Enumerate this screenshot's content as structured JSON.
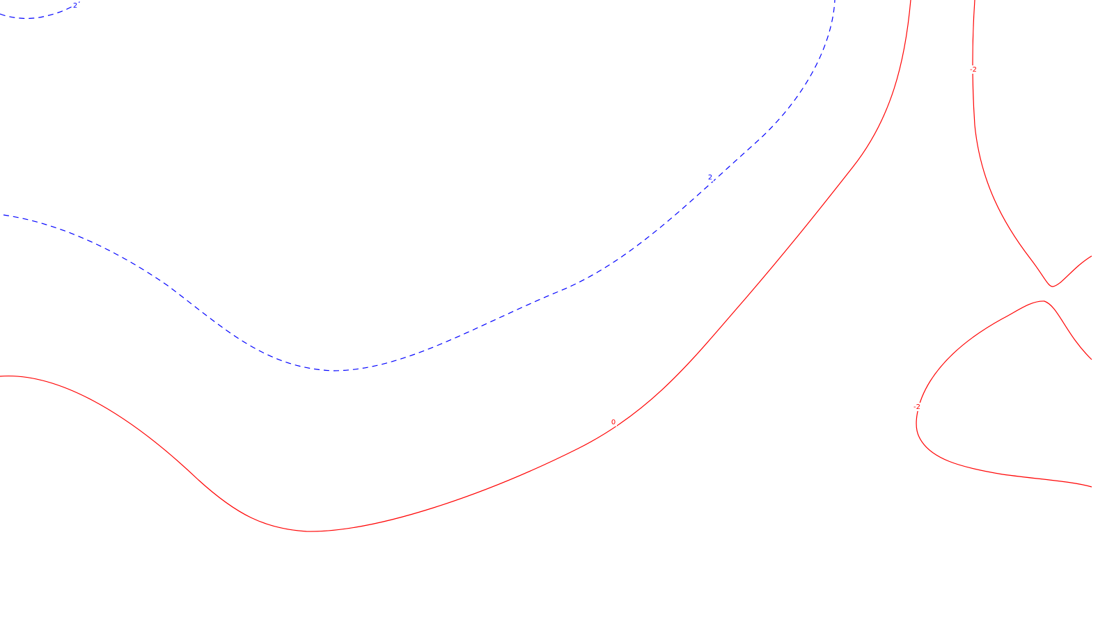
{
  "chart_data": {
    "type": "contour",
    "title": "",
    "xlabel": "",
    "ylabel": "",
    "grid": false,
    "legend": "none",
    "colors": {
      "background": "#ffffff",
      "positive": "#0000ff",
      "nonpositive": "#ff0000"
    },
    "levels": [
      {
        "value": 2,
        "label": "2",
        "color": "#0000ff",
        "style": "dashed"
      },
      {
        "value": 0,
        "label": "0",
        "color": "#ff0000",
        "style": "solid"
      },
      {
        "value": -2,
        "label": "-2",
        "color": "#ff0000",
        "style": "solid"
      }
    ]
  }
}
